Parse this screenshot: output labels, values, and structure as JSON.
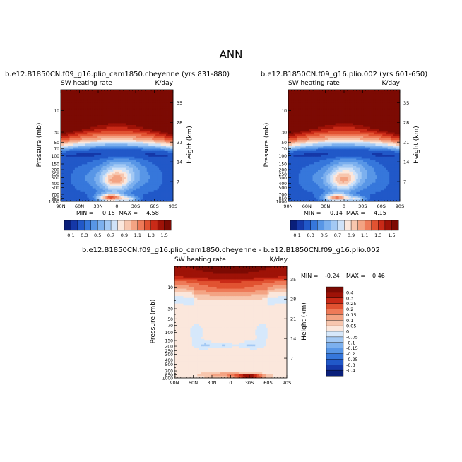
{
  "figure_title": "ANN",
  "colors": {
    "abs": [
      "#0a1f7a",
      "#1538a8",
      "#2158c8",
      "#3677db",
      "#5896e6",
      "#7cb0ee",
      "#a3c9f4",
      "#cfe2f8",
      "#fbe7dc",
      "#f7c6ae",
      "#f3a383",
      "#ee7a58",
      "#e15231",
      "#c92a17",
      "#9e1207",
      "#7c0a03"
    ],
    "diff": [
      "#0a1f7a",
      "#1538a8",
      "#2158c8",
      "#3677db",
      "#5896e6",
      "#7cb0ee",
      "#a3c9f4",
      "#d6e8fb",
      "#fbe7dc",
      "#f7c6ae",
      "#f3a383",
      "#ee7a58",
      "#e15231",
      "#c92a17",
      "#9e1207",
      "#7c0a03"
    ]
  },
  "chart_data": [
    {
      "type": "heatmap",
      "title": "b.e12.B1850CN.f09_g16.plio_cam1850.cheyenne (yrs 831-880)",
      "left_label": "SW heating rate",
      "right_label": "K/day",
      "xlabel": "",
      "ylabel": "Pressure (mb)",
      "ylabel_right": "Height (km)",
      "x_ticks": [
        "90N",
        "60N",
        "30N",
        "0",
        "30S",
        "60S",
        "90S"
      ],
      "x_range": [
        90,
        -90
      ],
      "y_ticks": [
        1000,
        850,
        700,
        500,
        400,
        300,
        250,
        200,
        150,
        100,
        70,
        50,
        30,
        10
      ],
      "y_tick_labels": [
        "1000",
        "850",
        "700",
        "500",
        "400",
        "300",
        "250",
        "200",
        "150",
        "100",
        "70",
        "50",
        "30",
        "10"
      ],
      "y_range_mb": [
        1000,
        3.5
      ],
      "height_ticks_km": [
        7,
        14,
        21,
        28,
        35
      ],
      "stats": {
        "min_label": "MIN =",
        "min": "0.15",
        "max_label": "MAX =",
        "max": "4.58"
      },
      "colorbar_levels": [
        "0.1",
        "0.3",
        "0.5",
        "0.7",
        "0.9",
        "1.1",
        "1.3",
        "1.5"
      ],
      "model": {
        "strat_top": 1.6,
        "strat_lo": 1.15,
        "strat_edge_boost": 0.9,
        "cap_p": 25,
        "cap_width": 0.55,
        "tropo_bg": 0.22,
        "blob_amp": 0.55,
        "sfc_amp": 0.95,
        "sfc_lat": 10
      }
    },
    {
      "type": "heatmap",
      "title": "b.e12.B1850CN.f09_g16.plio.002 (yrs 601-650)",
      "left_label": "SW heating rate",
      "right_label": "K/day",
      "xlabel": "",
      "ylabel": "Pressure (mb)",
      "ylabel_right": "Height (km)",
      "x_ticks": [
        "90N",
        "60N",
        "30N",
        "0",
        "30S",
        "60S",
        "90S"
      ],
      "x_range": [
        90,
        -90
      ],
      "y_ticks": [
        1000,
        850,
        700,
        500,
        400,
        300,
        250,
        200,
        150,
        100,
        70,
        50,
        30,
        10
      ],
      "y_tick_labels": [
        "1000",
        "850",
        "700",
        "500",
        "400",
        "300",
        "250",
        "200",
        "150",
        "100",
        "70",
        "50",
        "30",
        "10"
      ],
      "y_range_mb": [
        1000,
        3.5
      ],
      "height_ticks_km": [
        7,
        14,
        21,
        28,
        35
      ],
      "stats": {
        "min_label": "MIN =",
        "min": "0.14",
        "max_label": "MAX =",
        "max": "4.15"
      },
      "colorbar_levels": [
        "0.1",
        "0.3",
        "0.5",
        "0.7",
        "0.9",
        "1.1",
        "1.3",
        "1.5"
      ],
      "model": {
        "strat_top": 1.6,
        "strat_lo": 1.15,
        "strat_edge_boost": 0.9,
        "cap_p": 25,
        "cap_width": 0.55,
        "tropo_bg": 0.22,
        "blob_amp": 0.5,
        "sfc_amp": 0.85,
        "sfc_lat": 12
      }
    },
    {
      "type": "heatmap",
      "title": "b.e12.B1850CN.f09_g16.plio_cam1850.cheyenne - b.e12.B1850CN.f09_g16.plio.002",
      "left_label": "SW heating rate",
      "right_label": "K/day",
      "xlabel": "",
      "ylabel": "Pressure (mb)",
      "ylabel_right": "Height (km)",
      "x_ticks": [
        "90N",
        "60N",
        "30N",
        "0",
        "30S",
        "60S",
        "90S"
      ],
      "x_range": [
        90,
        -90
      ],
      "y_ticks": [
        1000,
        850,
        700,
        500,
        400,
        300,
        250,
        200,
        150,
        100,
        70,
        50,
        30,
        10
      ],
      "y_tick_labels": [
        "1000",
        "850",
        "700",
        "500",
        "400",
        "300",
        "250",
        "200",
        "150",
        "100",
        "70",
        "50",
        "30",
        "10"
      ],
      "y_range_mb": [
        1000,
        3.5
      ],
      "height_ticks_km": [
        7,
        14,
        21,
        28,
        35
      ],
      "stats": {
        "min_label": "MIN =",
        "min": "-0.24",
        "max_label": "MAX =",
        "max": "0.46"
      },
      "colorbar_levels": [
        "-0.4",
        "-0.3",
        "-0.25",
        "-0.2",
        "-0.15",
        "-0.1",
        "-0.05",
        "0",
        "0.05",
        "0.1",
        "0.15",
        "0.2",
        "0.25",
        "0.3",
        "0.4"
      ]
    }
  ]
}
